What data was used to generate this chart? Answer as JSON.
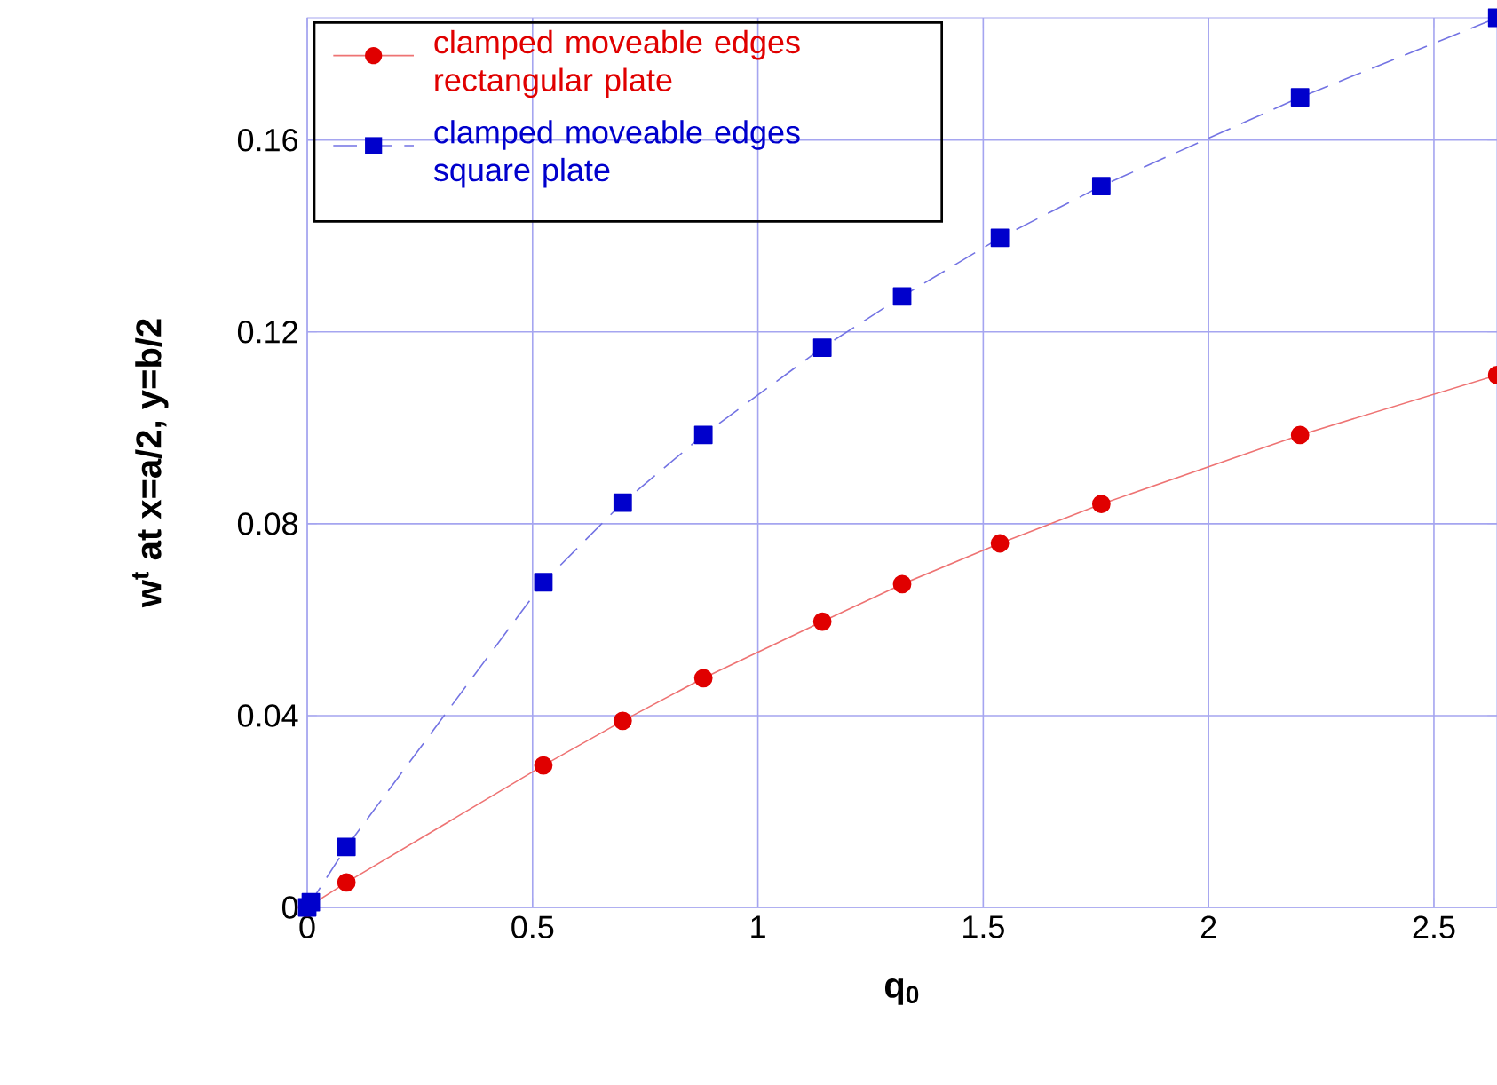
{
  "chart_data": {
    "type": "line",
    "xlabel": "q$_{0}$",
    "ylabel": "w$^{t}$ at x=a/2, y=b/2",
    "xlim": [
      0,
      2.64
    ],
    "ylim": [
      0,
      0.1855
    ],
    "xticks": [
      0,
      0.5,
      1,
      1.5,
      2,
      2.5
    ],
    "yticks": [
      0,
      0.04,
      0.08,
      0.12,
      0.16
    ],
    "grid": true,
    "legend": "top left",
    "series": [
      {
        "name": "clamped moveable edges rectangular plate",
        "color": "#e00000",
        "marker": "circle",
        "line_style": "solid",
        "x": [
          0,
          0.087,
          0.524,
          0.7,
          0.879,
          1.143,
          1.32,
          1.537,
          1.762,
          2.203,
          2.64
        ],
        "values": [
          0,
          0.0052,
          0.0296,
          0.0389,
          0.0478,
          0.0596,
          0.0674,
          0.0759,
          0.0841,
          0.0985,
          0.111
        ]
      },
      {
        "name": "clamped moveable edges square plate",
        "color": "#0000cc",
        "marker": "square",
        "line_style": "dashed",
        "x": [
          0,
          0.008,
          0.087,
          0.524,
          0.7,
          0.879,
          1.143,
          1.32,
          1.537,
          1.762,
          2.203,
          2.64
        ],
        "values": [
          0,
          0.0011,
          0.0126,
          0.0678,
          0.0844,
          0.0985,
          0.1167,
          0.1274,
          0.1396,
          0.1504,
          0.1689,
          0.1855
        ]
      }
    ]
  }
}
